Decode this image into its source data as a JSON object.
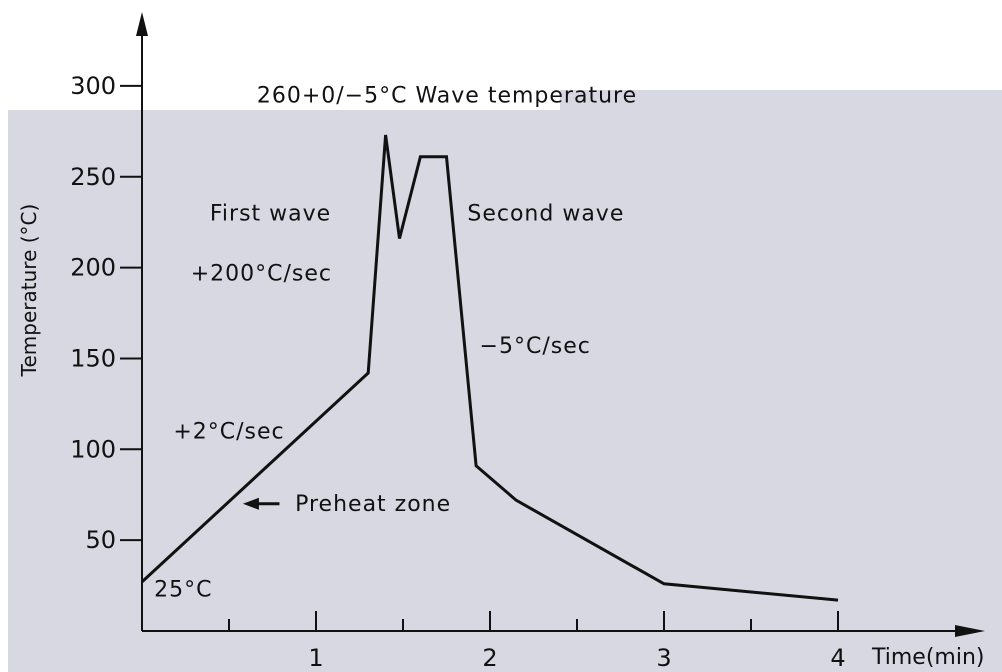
{
  "colors": {
    "plot_background": "#d8d8e2",
    "page_background": "#ffffff",
    "line": "#111111",
    "axis": "#111111"
  },
  "chart_data": {
    "type": "line",
    "title": "",
    "xlabel": "Time(min)",
    "ylabel": "Temperature (°C)",
    "xlim": [
      0,
      4.7
    ],
    "ylim": [
      0,
      330
    ],
    "x_ticks": [
      1,
      2,
      3,
      4
    ],
    "x_minor_ticks": [
      0.5,
      1.5,
      2.5,
      3.5
    ],
    "y_ticks": [
      50,
      100,
      150,
      200,
      250,
      300
    ],
    "grid": false,
    "legend": "none",
    "series": [
      {
        "x": [
          0,
          1.3,
          1.4,
          1.48,
          1.6,
          1.75,
          1.92,
          2.15,
          3.0,
          4.0
        ],
        "y": [
          27,
          142,
          273,
          216,
          261,
          261,
          91,
          72,
          26,
          17
        ]
      }
    ],
    "annotations": [
      {
        "text": "260+0/−5°C  Wave  temperature",
        "x": 0.66,
        "y": 291
      },
      {
        "text": "First  wave",
        "x": 0.39,
        "y": 226
      },
      {
        "text": "Second  wave",
        "x": 1.87,
        "y": 226
      },
      {
        "text": "+200°C/sec",
        "x": 0.28,
        "y": 193
      },
      {
        "text": "−5°C/sec",
        "x": 1.94,
        "y": 153
      },
      {
        "text": "+2°C/sec",
        "x": 0.18,
        "y": 106
      },
      {
        "text": "Preheat  zone",
        "x": 0.88,
        "y": 66
      },
      {
        "text": "25°C",
        "x": 0.07,
        "y": 19
      }
    ],
    "arrow": {
      "from": [
        0.79,
        70
      ],
      "to": [
        0.58,
        70
      ]
    }
  }
}
